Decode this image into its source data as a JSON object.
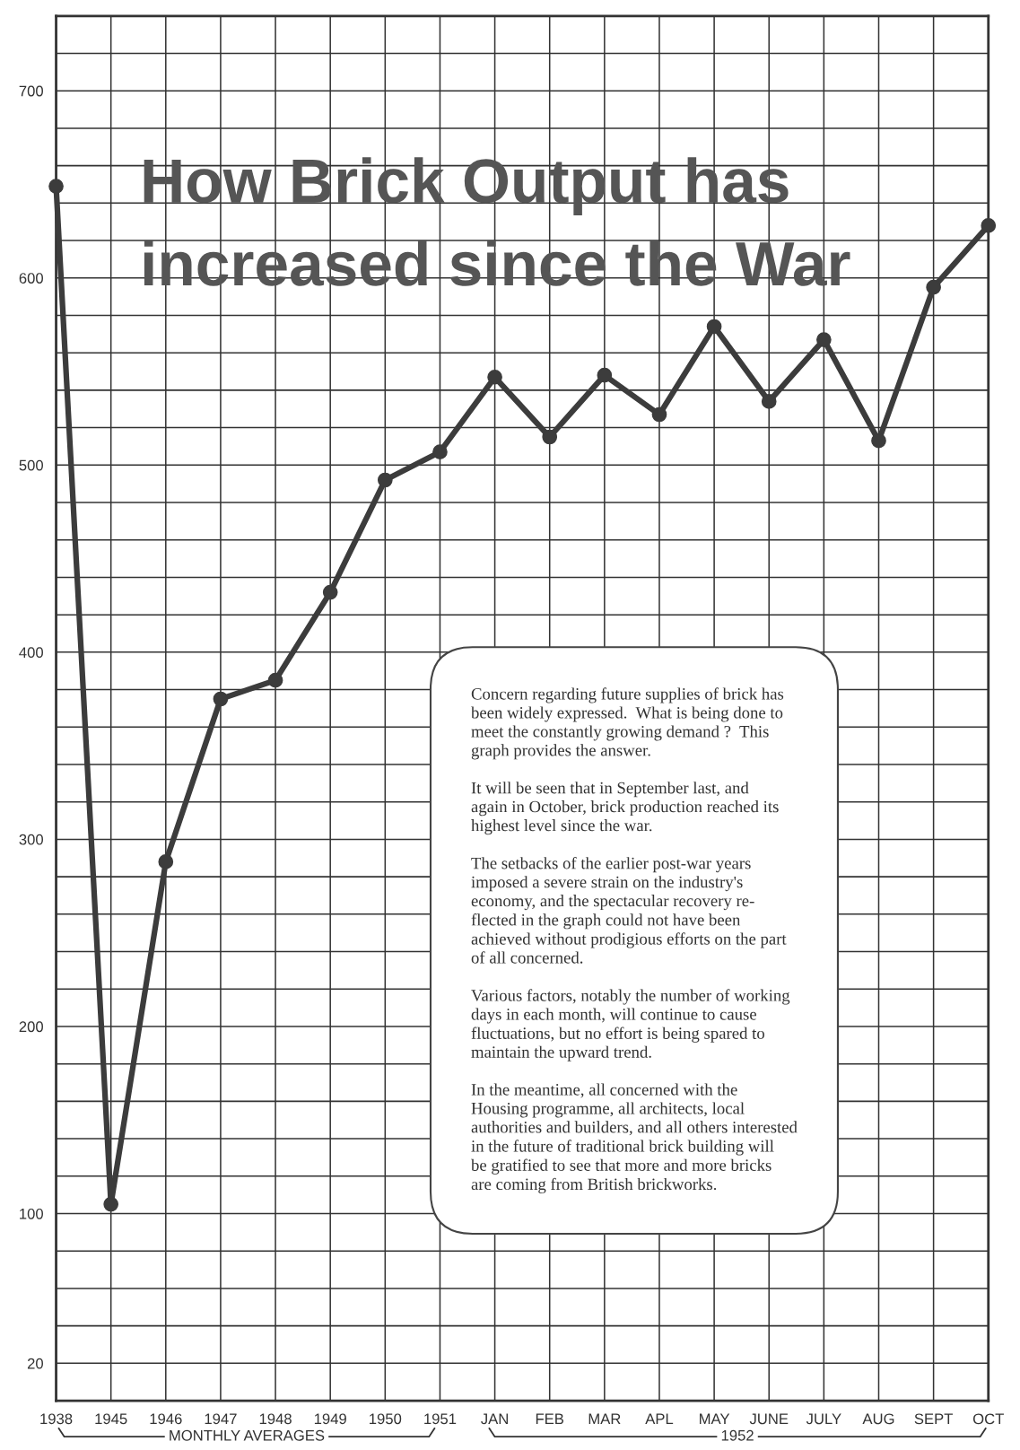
{
  "chart_data": {
    "type": "line",
    "title": "How Brick Output has\nincreased since the War",
    "categories": [
      "1938",
      "1945",
      "1946",
      "1947",
      "1948",
      "1949",
      "1950",
      "1951",
      "JAN",
      "FEB",
      "MAR",
      "APL",
      "MAY",
      "JUNE",
      "JULY",
      "AUG",
      "SEPT",
      "OCT"
    ],
    "series": [
      {
        "color": "#3c3c3c",
        "values": [
          649,
          105,
          288,
          375,
          385,
          432,
          492,
          507,
          547,
          515,
          548,
          527,
          574,
          534,
          567,
          513,
          595,
          628
        ]
      }
    ],
    "ylim": [
      0,
      740
    ],
    "yticks": [
      20,
      {
        "value": 40,
        "label": null
      },
      {
        "value": 60,
        "label": null
      },
      {
        "value": 80,
        "label": null
      },
      100,
      {
        "value": 120,
        "label": null
      },
      {
        "value": 140,
        "label": null
      },
      {
        "value": 160,
        "label": null
      },
      {
        "value": 180,
        "label": null
      },
      200,
      {
        "value": 220,
        "label": null
      },
      {
        "value": 240,
        "label": null
      },
      {
        "value": 260,
        "label": null
      },
      {
        "value": 280,
        "label": null
      },
      300,
      {
        "value": 320,
        "label": null
      },
      {
        "value": 340,
        "label": null
      },
      {
        "value": 360,
        "label": null
      },
      {
        "value": 380,
        "label": null
      },
      400,
      {
        "value": 420,
        "label": null
      },
      {
        "value": 440,
        "label": null
      },
      {
        "value": 460,
        "label": null
      },
      {
        "value": 480,
        "label": null
      },
      500,
      {
        "value": 520,
        "label": null
      },
      {
        "value": 540,
        "label": null
      },
      {
        "value": 560,
        "label": null
      },
      {
        "value": 580,
        "label": null
      },
      600,
      {
        "value": 620,
        "label": null
      },
      {
        "value": 640,
        "label": null
      },
      {
        "value": 660,
        "label": null
      },
      {
        "value": 680,
        "label": null
      },
      700,
      {
        "value": 720,
        "label": null
      }
    ],
    "grid": true,
    "marker": "circle",
    "line_style": "solid",
    "annotations": [
      "Concern regarding future supplies of brick has\nbeen widely expressed.  What is being done to\nmeet the constantly growing demand ?  This\ngraph provides the answer.\n\nIt will be seen that in September last, and\nagain in October, brick production reached its\nhighest level since the war.\n\nThe setbacks of the earlier post-war years\nimposed a severe strain on the industry's\neconomy, and the spectacular recovery re-\nflected in the graph could not have been\nachieved without prodigious efforts on the part\nof all concerned.\n\nVarious factors, notably the number of working\ndays in each month, will continue to cause\nfluctuations, but no effort is being spared to\nmaintain the upward trend.\n\nIn the meantime, all concerned with the\nHousing programme, all architects, local\nauthorities and builders, and all others interested\nin the future of traditional brick building will\nbe gratified to see that more and more bricks\nare coming from British brickworks.",
      "MONTHLY AVERAGES",
      "1952"
    ]
  }
}
